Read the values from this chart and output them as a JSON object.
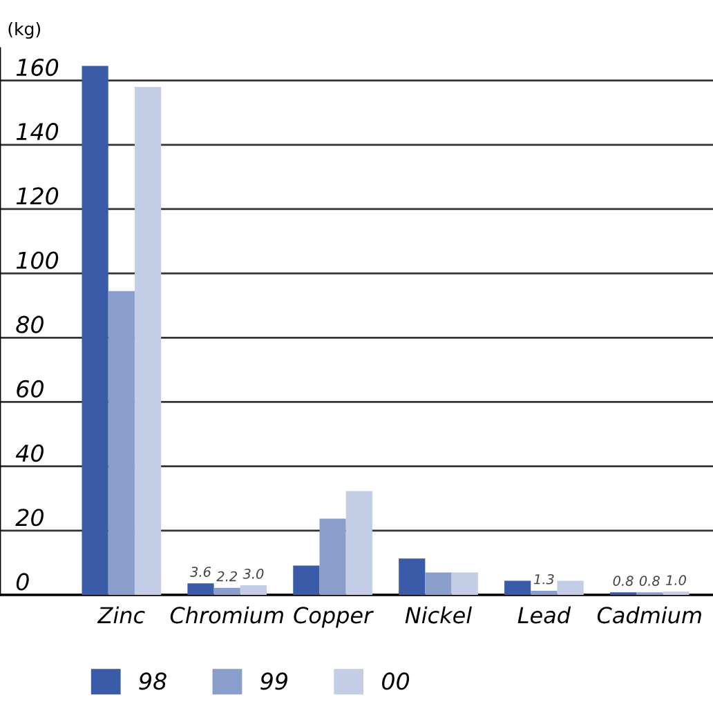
{
  "chart_data": {
    "type": "bar",
    "ylabel": "(kg)",
    "categories": [
      "Zinc",
      "Chromium",
      "Copper",
      "Nickel",
      "Lead",
      "Cadmium"
    ],
    "series": [
      {
        "name": "98",
        "color": "#3a5ba8",
        "values": [
          164.5,
          3.6,
          9.1,
          11.3,
          4.4,
          0.8
        ],
        "value_labels": [
          null,
          "3.6",
          null,
          null,
          null,
          "0.8"
        ]
      },
      {
        "name": "99",
        "color": "#8a9ecc",
        "values": [
          94.5,
          2.2,
          23.7,
          7.0,
          1.3,
          0.8
        ],
        "value_labels": [
          null,
          "2.2",
          null,
          null,
          "1.3",
          "0.8"
        ]
      },
      {
        "name": "00",
        "color": "#c4cde6",
        "values": [
          158,
          3.0,
          32.3,
          7.0,
          4.4,
          1.0
        ],
        "value_labels": [
          null,
          "3.0",
          null,
          null,
          null,
          "1.0"
        ]
      }
    ],
    "ylim": [
      0,
      170
    ],
    "yticks": [
      0,
      20,
      40,
      60,
      80,
      100,
      120,
      140,
      160
    ],
    "grid": "y",
    "legend": "bottom left"
  }
}
